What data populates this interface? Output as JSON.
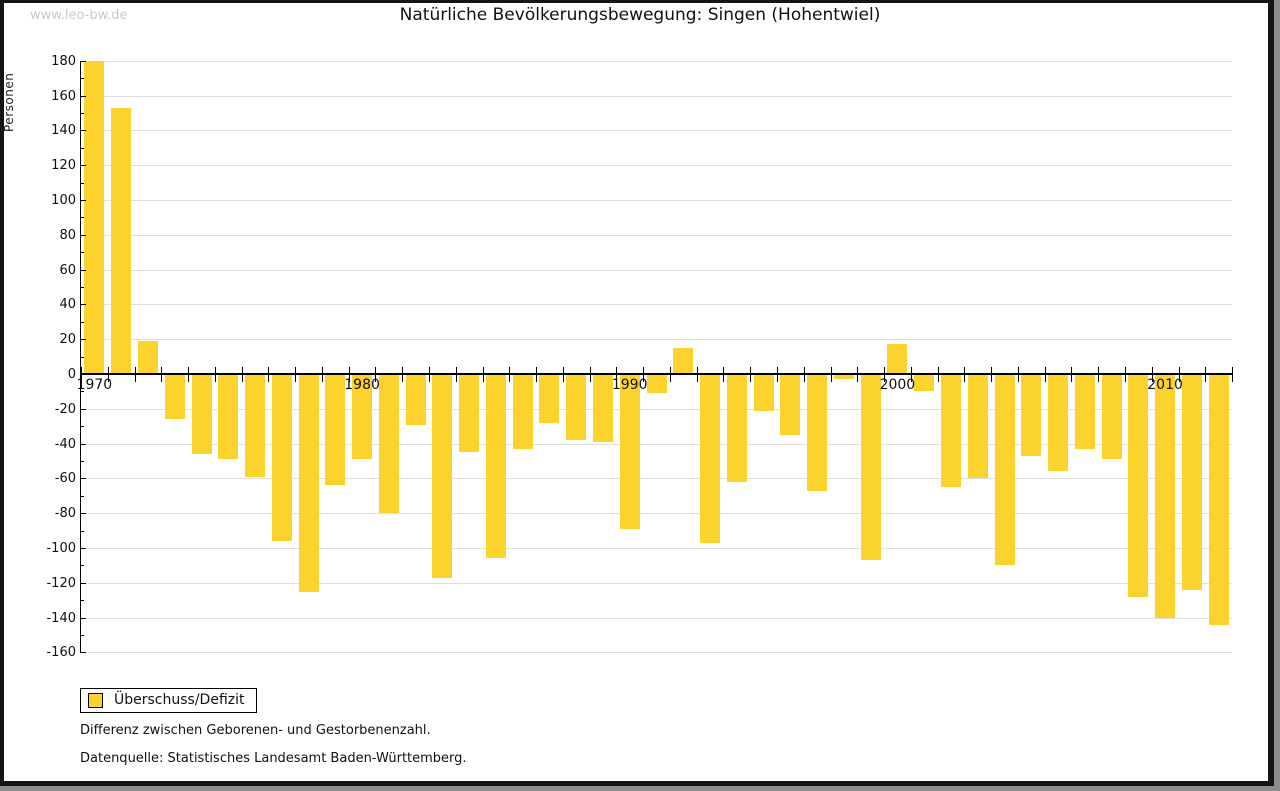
{
  "watermark": "www.leo-bw.de",
  "title": "Natürliche Bevölkerungsbewegung: Singen (Hohentwiel)",
  "legend": {
    "label": "Überschuss/Defizit"
  },
  "footnotes": [
    "Differenz zwischen Geborenen- und Gestorbenenzahl.",
    "Datenquelle: Statistisches Landesamt Baden-Württemberg."
  ],
  "colors": {
    "bar": "#fcd32d",
    "grid": "#dedede",
    "axis": "#000000",
    "watermark": "#c9c9c9"
  },
  "chart_data": {
    "type": "bar",
    "title": "Natürliche Bevölkerungsbewegung: Singen (Hohentwiel)",
    "series_name": "Überschuss/Defizit",
    "xlabel": "",
    "ylabel": "Personen",
    "ylim": [
      -160,
      180
    ],
    "ytick_step_major": 20,
    "ytick_step_minor": 10,
    "grid": "horizontal",
    "legend_position": "bottom-left",
    "xticks_labeled": [
      1970,
      1980,
      1990,
      2000,
      2010
    ],
    "years": [
      1970,
      1971,
      1972,
      1973,
      1974,
      1975,
      1976,
      1977,
      1978,
      1979,
      1980,
      1981,
      1982,
      1983,
      1984,
      1985,
      1986,
      1987,
      1988,
      1989,
      1990,
      1991,
      1992,
      1993,
      1994,
      1995,
      1996,
      1997,
      1998,
      1999,
      2000,
      2001,
      2002,
      2003,
      2004,
      2005,
      2006,
      2007,
      2008,
      2009,
      2010,
      2011,
      2012
    ],
    "values": [
      180,
      153,
      19,
      -26,
      -46,
      -49,
      -59,
      -96,
      -125,
      -64,
      -49,
      -80,
      -29,
      -117,
      -45,
      -106,
      -43,
      -28,
      -38,
      -39,
      -89,
      -11,
      15,
      -97,
      -62,
      -21,
      -35,
      -67,
      -3,
      -107,
      17,
      -10,
      -65,
      -60,
      -110,
      -47,
      -56,
      -43,
      -49,
      -128,
      -140,
      -124,
      -144
    ]
  }
}
